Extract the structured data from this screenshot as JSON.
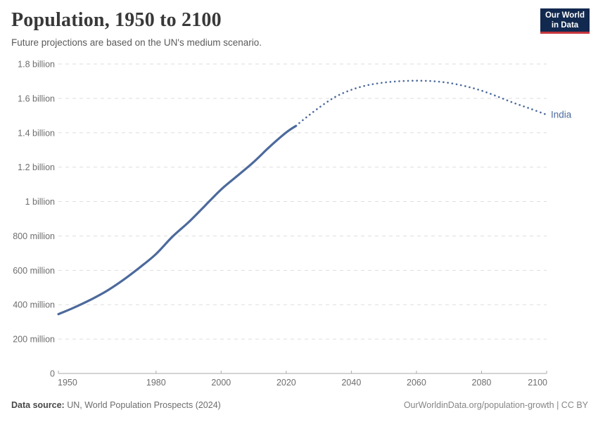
{
  "header": {
    "title": "Population, 1950 to 2100",
    "subtitle": "Future projections are based on the UN's medium scenario.",
    "logo": {
      "line1": "Our World",
      "line2": "in Data"
    }
  },
  "footer": {
    "source_label": "Data source:",
    "source_value": " UN, World Population Prospects (2024)",
    "attribution": "OurWorldinData.org/population-growth | CC BY"
  },
  "colors": {
    "series_blue": "#4c6a9c",
    "grid": "#dedede",
    "axis": "#a9a9a9",
    "tick_text": "#6e6e6e",
    "logo_navy": "#12294f",
    "logo_red": "#c5353c"
  },
  "chart_data": {
    "type": "line",
    "title": "Population, 1950 to 2100",
    "subtitle": "Future projections are based on the UN's medium scenario.",
    "xlabel": "",
    "ylabel": "",
    "xlim": [
      1950,
      2100
    ],
    "ylim": [
      0,
      1800
    ],
    "unit": "millions of people",
    "grid": "dashed horizontal",
    "legend_position": "end-of-line label",
    "x_ticks": [
      1950,
      1980,
      2000,
      2020,
      2040,
      2060,
      2080,
      2100
    ],
    "y_ticks": [
      {
        "value": 0,
        "label": "0"
      },
      {
        "value": 200,
        "label": "200 million"
      },
      {
        "value": 400,
        "label": "400 million"
      },
      {
        "value": 600,
        "label": "600 million"
      },
      {
        "value": 800,
        "label": "800 million"
      },
      {
        "value": 1000,
        "label": "1 billion"
      },
      {
        "value": 1200,
        "label": "1.2 billion"
      },
      {
        "value": 1400,
        "label": "1.4 billion"
      },
      {
        "value": 1600,
        "label": "1.6 billion"
      },
      {
        "value": 1800,
        "label": "1.8 billion"
      }
    ],
    "series": [
      {
        "name": "India",
        "color": "#4c6a9c",
        "projection_start_year": 2023,
        "projection_style": "dotted",
        "points": [
          [
            1950,
            345
          ],
          [
            1955,
            385
          ],
          [
            1960,
            430
          ],
          [
            1965,
            482
          ],
          [
            1970,
            545
          ],
          [
            1975,
            617
          ],
          [
            1980,
            695
          ],
          [
            1985,
            795
          ],
          [
            1990,
            880
          ],
          [
            1995,
            975
          ],
          [
            2000,
            1070
          ],
          [
            2005,
            1150
          ],
          [
            2010,
            1230
          ],
          [
            2015,
            1320
          ],
          [
            2020,
            1402
          ],
          [
            2023,
            1440
          ],
          [
            2025,
            1472
          ],
          [
            2030,
            1545
          ],
          [
            2035,
            1608
          ],
          [
            2040,
            1650
          ],
          [
            2045,
            1677
          ],
          [
            2050,
            1692
          ],
          [
            2055,
            1700
          ],
          [
            2060,
            1703
          ],
          [
            2065,
            1700
          ],
          [
            2070,
            1690
          ],
          [
            2075,
            1671
          ],
          [
            2080,
            1645
          ],
          [
            2085,
            1610
          ],
          [
            2090,
            1573
          ],
          [
            2095,
            1540
          ],
          [
            2100,
            1505
          ]
        ]
      }
    ]
  }
}
